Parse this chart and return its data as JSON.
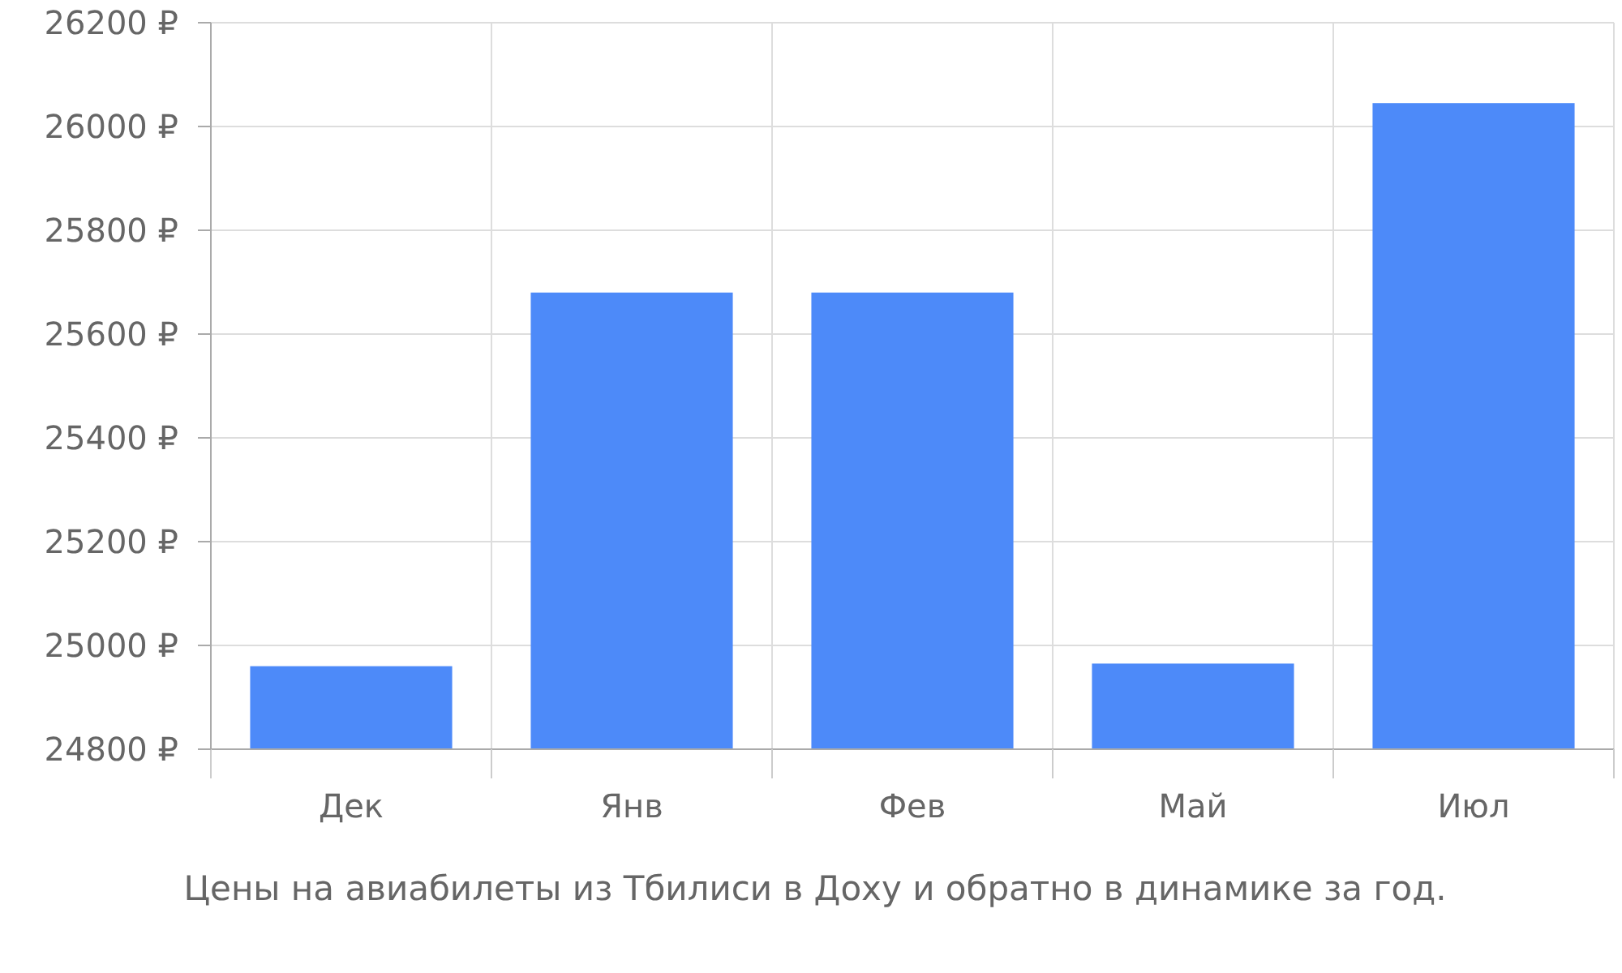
{
  "chart_data": {
    "type": "bar",
    "categories": [
      "Дек",
      "Янв",
      "Фев",
      "Май",
      "Июл"
    ],
    "values": [
      24960,
      25680,
      25680,
      24965,
      26045
    ],
    "color": "#4d8af9",
    "ylim": [
      24800,
      26200
    ],
    "yticks": [
      {
        "value": 24800,
        "label": "24800 ₽"
      },
      {
        "value": 25000,
        "label": "25000 ₽"
      },
      {
        "value": 25200,
        "label": "25200 ₽"
      },
      {
        "value": 25400,
        "label": "25400 ₽"
      },
      {
        "value": 25600,
        "label": "25600 ₽"
      },
      {
        "value": 25800,
        "label": "25800 ₽"
      },
      {
        "value": 26000,
        "label": "26000 ₽"
      },
      {
        "value": 26200,
        "label": "26200 ₽"
      }
    ],
    "grid": true,
    "xlabel": "Цены на авиабилеты из Тбилиси в Доху и обратно в динамике за год."
  }
}
